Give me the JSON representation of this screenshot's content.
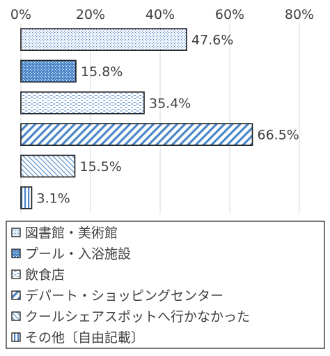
{
  "chart_data": {
    "type": "bar",
    "orientation": "horizontal",
    "categories": [
      "図書館・美術館",
      "プール・入浴施設",
      "飲食店",
      "デパート・ショッピングセンター",
      "クールシェアスポットへ行かなかった",
      "その他〔自由記載〕"
    ],
    "values": [
      47.6,
      15.8,
      35.4,
      66.5,
      15.5,
      3.1
    ],
    "value_labels": [
      "47.6%",
      "15.8%",
      "35.4%",
      "66.5%",
      "15.5%",
      "3.1%"
    ],
    "xlim": [
      0,
      80
    ],
    "x_ticks": [
      0,
      20,
      40,
      60,
      80
    ],
    "x_tick_labels": [
      "0%",
      "20%",
      "40%",
      "60%",
      "80%"
    ],
    "x_axis_position": "top",
    "grid": true,
    "legend": {
      "placement": "bottom",
      "entries": [
        "図書館・美術館",
        "プール・入浴施設",
        "飲食店",
        "デパート・ショッピングセンター",
        "クールシェアスポットへ行かなかった",
        "その他〔自由記載〕"
      ]
    },
    "title": "",
    "xlabel": "",
    "ylabel": ""
  },
  "colors": {
    "outline": "#1a1a1a",
    "grid": "#d9d9d9",
    "text": "#404040",
    "blue_dark": "#4a86c8",
    "blue_light": "#9ec3e6"
  },
  "patterns": [
    "small-dots",
    "dense-dots",
    "dashes",
    "diagonal-stripes",
    "thin-diagonals",
    "vertical-stripes"
  ]
}
